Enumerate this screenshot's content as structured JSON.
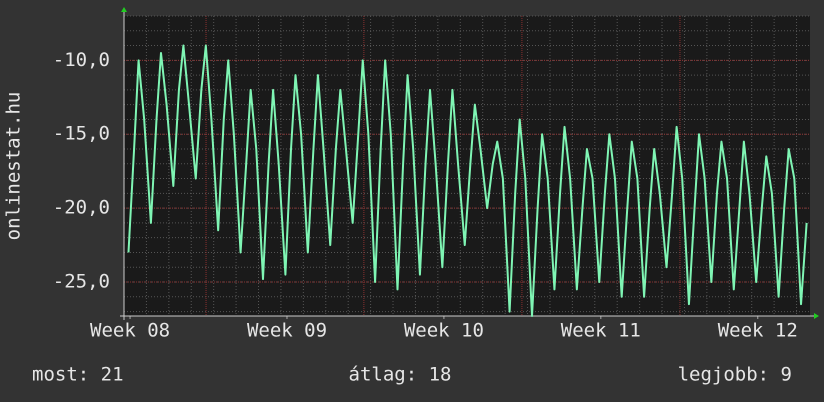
{
  "chart_data": {
    "type": "line",
    "ylabel": "onlinestat.hu",
    "x": [
      0.2,
      0.45,
      0.65,
      0.9,
      1.2,
      1.45,
      1.65,
      1.9,
      2.2,
      2.45,
      2.65,
      2.9,
      3.2,
      3.45,
      3.65,
      3.9,
      4.2,
      4.45,
      4.65,
      4.9,
      5.2,
      5.45,
      5.65,
      5.9,
      6.2,
      6.45,
      6.65,
      6.9,
      7.2,
      7.45,
      7.65,
      7.9,
      8.2,
      8.45,
      8.65,
      8.9,
      9.2,
      9.45,
      9.65,
      9.9,
      10.2,
      10.45,
      10.65,
      10.9,
      11.2,
      11.45,
      11.65,
      11.9,
      12.2,
      12.45,
      12.65,
      12.9,
      13.2,
      13.45,
      13.65,
      13.9,
      14.2,
      14.45,
      14.65,
      14.9,
      15.2,
      15.45,
      15.65,
      15.9,
      16.2,
      16.45,
      16.65,
      16.9,
      17.2,
      17.45,
      17.65,
      17.9,
      18.2,
      18.45,
      18.65,
      18.9,
      19.2,
      19.45,
      19.65,
      19.9,
      20.2,
      20.45,
      20.65,
      20.9,
      21.2,
      21.45,
      21.65,
      21.9,
      22.2,
      22.45,
      22.65,
      22.9,
      23.2,
      23.45,
      23.65,
      23.9,
      24.2,
      24.45,
      24.65,
      24.9,
      25.2,
      25.45,
      25.65,
      25.9,
      26.2,
      26.45,
      26.65,
      26.9,
      27.2,
      27.45,
      27.65,
      27.9,
      28.2,
      28.45,
      28.65,
      28.9,
      29.2,
      29.45,
      29.65,
      29.9,
      30.2,
      30.45
    ],
    "series": [
      {
        "color": "#7ff5b4",
        "values": [
          -23,
          -16,
          -10,
          -14,
          -21,
          -14,
          -9.5,
          -13,
          -18.5,
          -12,
          -9,
          -13,
          -18,
          -12,
          -9,
          -14,
          -21.5,
          -14,
          -10,
          -15,
          -23,
          -17,
          -12,
          -16,
          -24.8,
          -17,
          -12,
          -17,
          -24.5,
          -16,
          -11,
          -15,
          -23,
          -16,
          -11,
          -16,
          -22.5,
          -16,
          -12,
          -16,
          -21,
          -15,
          -10,
          -15,
          -25,
          -16,
          -10,
          -15,
          -25.5,
          -17,
          -11,
          -16,
          -24.5,
          -17,
          -12,
          -17,
          -24,
          -17,
          -12,
          -17,
          -22.5,
          -17,
          -13,
          -16,
          -20,
          -17,
          -15.5,
          -18,
          -27,
          -19,
          -14,
          -18,
          -27.3,
          -20,
          -15,
          -18,
          -25.5,
          -19,
          -14.5,
          -18,
          -25.5,
          -20,
          -16,
          -18,
          -25,
          -19,
          -15,
          -18,
          -26,
          -20,
          -15.5,
          -18,
          -26,
          -20,
          -16,
          -19,
          -24,
          -19,
          -14.5,
          -18,
          -26.5,
          -20,
          -15,
          -18,
          -25,
          -19,
          -15.5,
          -18,
          -25.5,
          -20,
          -15.5,
          -19,
          -25,
          -20,
          -16.5,
          -19,
          -26,
          -20,
          -16,
          -18,
          -26.5,
          -21
        ]
      }
    ],
    "xlim": [
      0,
      30.6
    ],
    "xticks": [
      {
        "value": 0.27,
        "label": "Week 08"
      },
      {
        "value": 7.27,
        "label": "Week 09"
      },
      {
        "value": 14.27,
        "label": "Week 10"
      },
      {
        "value": 21.27,
        "label": "Week 11"
      },
      {
        "value": 28.27,
        "label": "Week 12"
      }
    ],
    "xgrid": [
      3.66,
      10.7,
      17.75,
      24.8
    ],
    "ylim": [
      -27.3,
      -7.0
    ],
    "yticks": [
      {
        "value": -10,
        "label": "-10,0"
      },
      {
        "value": -15,
        "label": "-15,0"
      },
      {
        "value": -20,
        "label": "-20,0"
      },
      {
        "value": -25,
        "label": "-25,0"
      }
    ],
    "grid": true,
    "stats": [
      "most: 21",
      "átlag: 18",
      "legjobb: 9"
    ]
  }
}
